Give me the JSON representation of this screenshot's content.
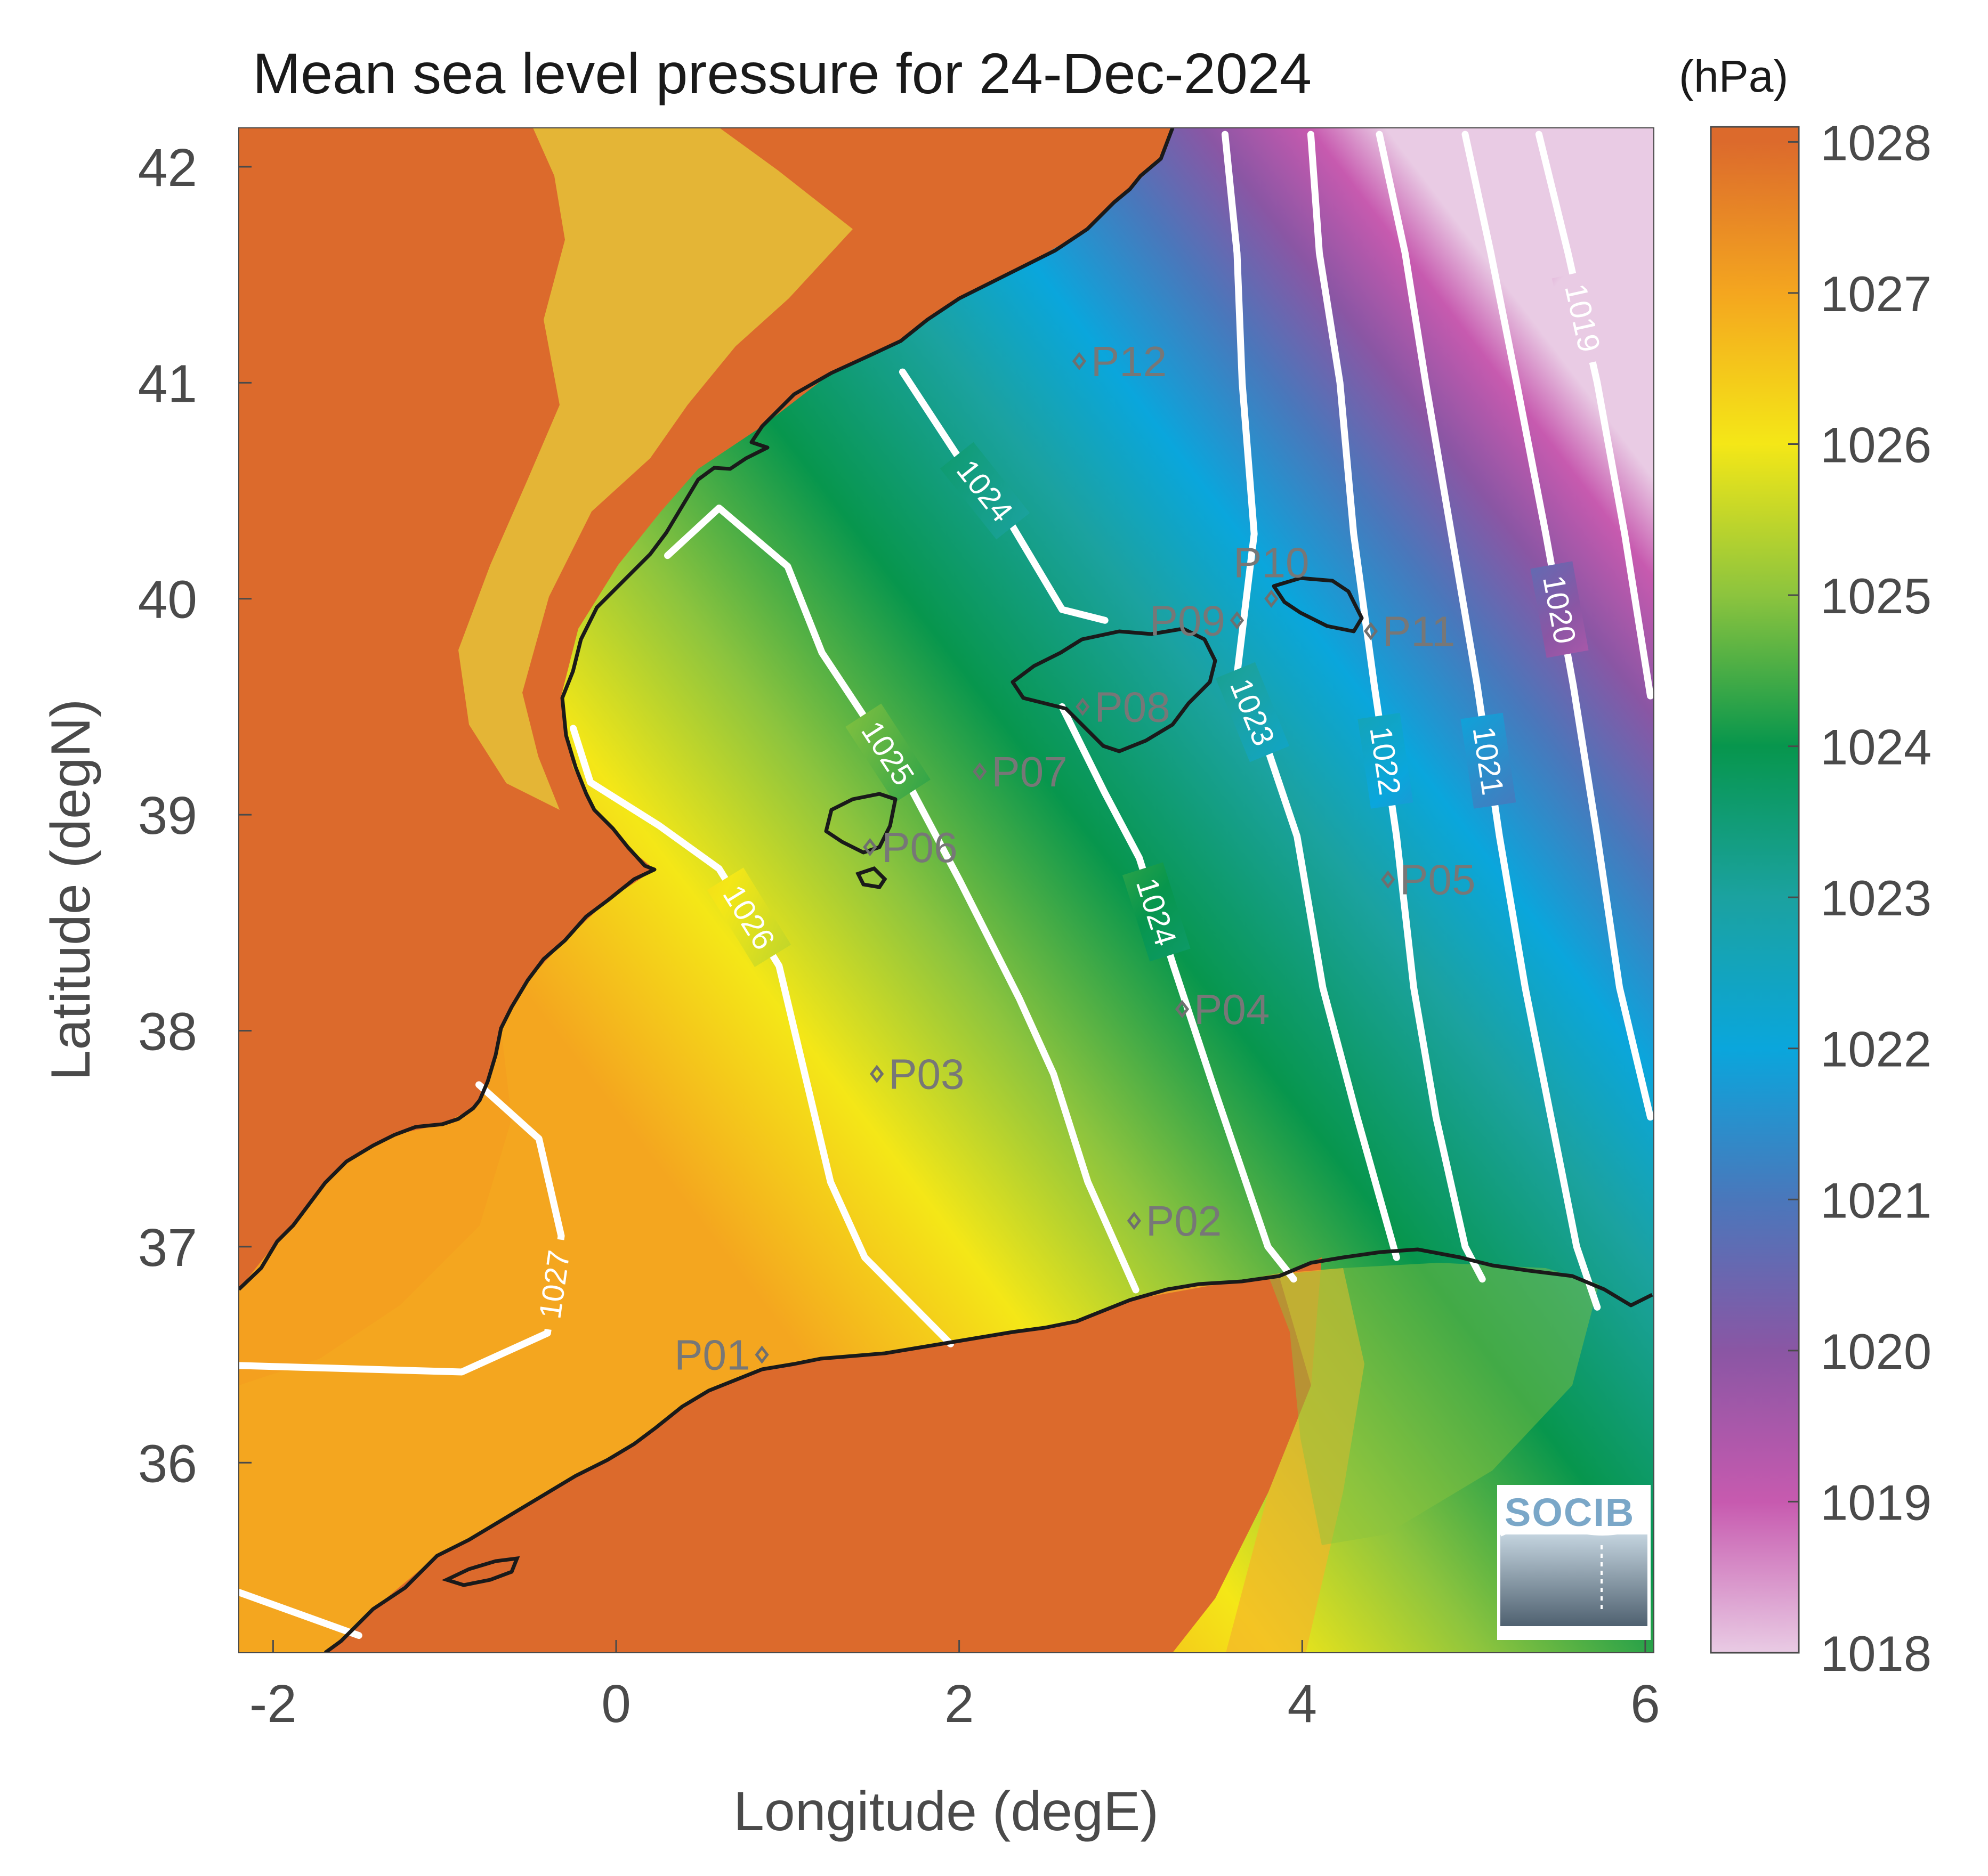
{
  "title": "Mean sea level pressure for 24-Dec-2024",
  "colorbar": {
    "unit": "(hPa)",
    "range": [
      1018,
      1028.1
    ],
    "tick_labels": [
      "1028",
      "1027",
      "1026",
      "1025",
      "1024",
      "1023",
      "1022",
      "1021",
      "1020",
      "1019",
      "1018"
    ],
    "tick_values": [
      1028,
      1027,
      1026,
      1025,
      1024,
      1023,
      1022,
      1021,
      1020,
      1019,
      1018
    ],
    "colormap": [
      {
        "value": 1018,
        "color": "#e9cbe4"
      },
      {
        "value": 1019,
        "color": "#c75aaf"
      },
      {
        "value": 1020,
        "color": "#8a56a4"
      },
      {
        "value": 1021,
        "color": "#4a77bb"
      },
      {
        "value": 1022,
        "color": "#0aa6dc"
      },
      {
        "value": 1023,
        "color": "#1ba2a0"
      },
      {
        "value": 1024,
        "color": "#07964d"
      },
      {
        "value": 1025,
        "color": "#8cc43e"
      },
      {
        "value": 1026,
        "color": "#f4e717"
      },
      {
        "value": 1027,
        "color": "#f4a61f"
      },
      {
        "value": 1028,
        "color": "#dc6a2c"
      }
    ]
  },
  "axes": {
    "x_title": "Longitude (degE)",
    "y_title": "Latitude (degN)",
    "xlim": [
      -2.2,
      6.05
    ],
    "ylim": [
      35.12,
      42.18
    ],
    "x_ticks": [
      {
        "value": -2,
        "label": "-2"
      },
      {
        "value": 0,
        "label": "0"
      },
      {
        "value": 2,
        "label": "2"
      },
      {
        "value": 4,
        "label": "4"
      },
      {
        "value": 6,
        "label": "6"
      }
    ],
    "y_ticks": [
      {
        "value": 42,
        "label": "42"
      },
      {
        "value": 41,
        "label": "41"
      },
      {
        "value": 40,
        "label": "40"
      },
      {
        "value": 39,
        "label": "39"
      },
      {
        "value": 38,
        "label": "38"
      },
      {
        "value": 37,
        "label": "37"
      },
      {
        "value": 36,
        "label": "36"
      }
    ]
  },
  "chart_data": {
    "type": "heatmap",
    "title": "Mean sea level pressure for 24-Dec-2024",
    "xlabel": "Longitude (degE)",
    "ylabel": "Latitude (degN)",
    "colorbar_label": "(hPa)",
    "contour_levels": [
      {
        "level": "1019",
        "points": [
          [
            5.38,
            42.15
          ],
          [
            5.55,
            41.6
          ],
          [
            5.72,
            41.0
          ],
          [
            5.88,
            40.3
          ],
          [
            6.03,
            39.55
          ]
        ]
      },
      {
        "level": "1020",
        "points": [
          [
            4.95,
            42.15
          ],
          [
            5.1,
            41.6
          ],
          [
            5.25,
            41.0
          ],
          [
            5.42,
            40.3
          ],
          [
            5.58,
            39.6
          ],
          [
            5.72,
            38.9
          ],
          [
            5.85,
            38.2
          ],
          [
            6.03,
            37.6
          ]
        ]
      },
      {
        "level": "1021",
        "points": [
          [
            4.45,
            42.15
          ],
          [
            4.6,
            41.6
          ],
          [
            4.72,
            41.0
          ],
          [
            4.87,
            40.3
          ],
          [
            5.02,
            39.6
          ],
          [
            5.15,
            38.9
          ],
          [
            5.3,
            38.2
          ],
          [
            5.45,
            37.6
          ],
          [
            5.6,
            37.0
          ],
          [
            5.72,
            36.72
          ]
        ]
      },
      {
        "level": "1022",
        "points": [
          [
            4.05,
            42.15
          ],
          [
            4.1,
            41.6
          ],
          [
            4.22,
            41.0
          ],
          [
            4.3,
            40.3
          ],
          [
            4.42,
            39.6
          ],
          [
            4.55,
            38.9
          ],
          [
            4.65,
            38.2
          ],
          [
            4.78,
            37.6
          ],
          [
            4.95,
            37.0
          ],
          [
            5.05,
            36.85
          ]
        ]
      },
      {
        "level": "1023",
        "points": [
          [
            3.55,
            42.15
          ],
          [
            3.62,
            41.6
          ],
          [
            3.65,
            41.0
          ],
          [
            3.72,
            40.3
          ],
          [
            3.62,
            39.65
          ],
          [
            3.8,
            39.3
          ],
          [
            3.97,
            38.9
          ],
          [
            4.12,
            38.2
          ],
          [
            4.32,
            37.6
          ],
          [
            4.55,
            36.95
          ]
        ]
      },
      {
        "level": "1024",
        "points": [
          [
            1.67,
            41.05
          ],
          [
            2.0,
            40.65
          ],
          [
            2.3,
            40.35
          ],
          [
            2.6,
            39.95
          ],
          [
            2.85,
            39.9
          ]
        ]
      },
      {
        "level": "1024",
        "points": [
          [
            2.6,
            39.5
          ],
          [
            2.85,
            39.1
          ],
          [
            3.05,
            38.8
          ],
          [
            3.25,
            38.3
          ],
          [
            3.5,
            37.7
          ],
          [
            3.8,
            37.0
          ],
          [
            3.95,
            36.85
          ]
        ]
      },
      {
        "level": "1025",
        "points": [
          [
            0.3,
            40.2
          ],
          [
            0.6,
            40.42
          ],
          [
            1.0,
            40.15
          ],
          [
            1.2,
            39.75
          ],
          [
            1.45,
            39.45
          ],
          [
            1.72,
            39.12
          ],
          [
            2.0,
            38.7
          ],
          [
            2.35,
            38.15
          ],
          [
            2.55,
            37.8
          ],
          [
            2.75,
            37.3
          ],
          [
            3.03,
            36.8
          ]
        ]
      },
      {
        "level": "1026",
        "points": [
          [
            -0.25,
            39.4
          ],
          [
            -0.15,
            39.15
          ],
          [
            0.25,
            38.95
          ],
          [
            0.6,
            38.75
          ],
          [
            0.95,
            38.3
          ],
          [
            1.1,
            37.8
          ],
          [
            1.25,
            37.3
          ],
          [
            1.45,
            36.95
          ],
          [
            1.95,
            36.55
          ]
        ]
      },
      {
        "level": "1027",
        "points": [
          [
            -2.2,
            36.45
          ],
          [
            -0.9,
            36.42
          ],
          [
            -0.4,
            36.6
          ],
          [
            -0.32,
            37.05
          ],
          [
            -0.45,
            37.5
          ],
          [
            -0.8,
            37.75
          ]
        ]
      },
      {
        "level": "1027",
        "points": [
          [
            -2.2,
            35.4
          ],
          [
            -1.5,
            35.2
          ]
        ]
      }
    ],
    "stations": [
      {
        "name": "P01",
        "lon": 0.85,
        "lat": 36.5,
        "label_side": "left"
      },
      {
        "name": "P02",
        "lon": 3.02,
        "lat": 37.12,
        "label_side": "right"
      },
      {
        "name": "P03",
        "lon": 1.52,
        "lat": 37.8,
        "label_side": "right"
      },
      {
        "name": "P04",
        "lon": 3.3,
        "lat": 38.1,
        "label_side": "right"
      },
      {
        "name": "P05",
        "lon": 4.5,
        "lat": 38.7,
        "label_side": "right"
      },
      {
        "name": "P06",
        "lon": 1.48,
        "lat": 38.85,
        "label_side": "right"
      },
      {
        "name": "P07",
        "lon": 2.12,
        "lat": 39.2,
        "label_side": "right"
      },
      {
        "name": "P08",
        "lon": 2.72,
        "lat": 39.5,
        "label_side": "right"
      },
      {
        "name": "P09",
        "lon": 3.62,
        "lat": 39.9,
        "label_side": "left"
      },
      {
        "name": "P10",
        "lon": 3.82,
        "lat": 40.0,
        "label_side": "above"
      },
      {
        "name": "P11",
        "lon": 4.4,
        "lat": 39.85,
        "label_side": "right"
      },
      {
        "name": "P12",
        "lon": 2.7,
        "lat": 41.1,
        "label_side": "right"
      }
    ]
  },
  "logo": {
    "text": "SOCIB"
  }
}
